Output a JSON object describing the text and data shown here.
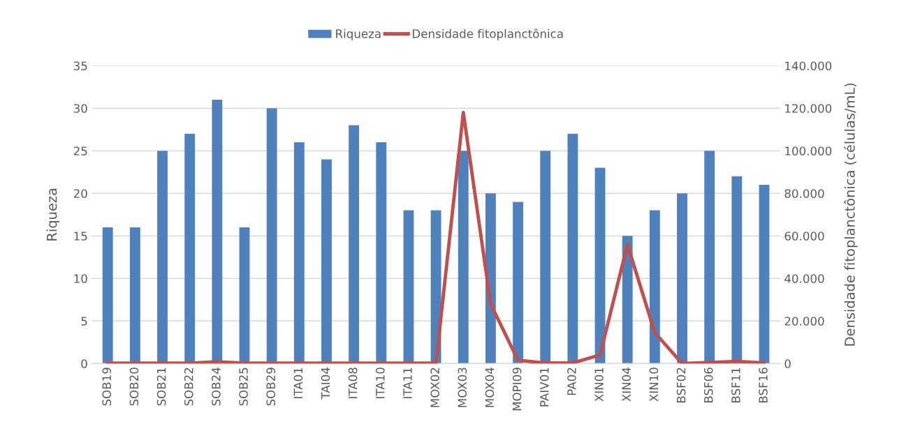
{
  "chart_data": {
    "type": "bar",
    "ylabel": "Riqueza",
    "y2label": "Densidade fitoplanctônica (células/mL)",
    "categories": [
      "SOB19",
      "SOB20",
      "SOB21",
      "SOB22",
      "SOB24",
      "SOB25",
      "SOB29",
      "ITA01",
      "TAI04",
      "ITA08",
      "ITA10",
      "ITA11",
      "MOX02",
      "MOX03",
      "MOX04",
      "MOPI09",
      "PAIV01",
      "PA02",
      "XIN01",
      "XIN04",
      "XIN10",
      "BSF02",
      "BSF06",
      "BSF11",
      "BSF16"
    ],
    "series": [
      {
        "name": "Riqueza",
        "color": "#4f81bd",
        "values": [
          16,
          16,
          25,
          27,
          31,
          16,
          30,
          26,
          24,
          28,
          26,
          18,
          18,
          25,
          20,
          19,
          25,
          27,
          23,
          15,
          18,
          20,
          25,
          22,
          21
        ]
      },
      {
        "name": "Densidade fitoplanctônica",
        "type": "line",
        "axis": "y2",
        "color": "#c0504d",
        "values": [
          200,
          200,
          200,
          200,
          800,
          200,
          200,
          200,
          200,
          200,
          200,
          200,
          300,
          118000,
          28000,
          1500,
          300,
          300,
          4000,
          56000,
          14500,
          0,
          500,
          1000,
          300
        ]
      }
    ],
    "ylim": [
      0,
      35
    ],
    "yticks": [
      0,
      5,
      10,
      15,
      20,
      25,
      30,
      35
    ],
    "y2lim": [
      0,
      140000
    ],
    "y2ticks": [
      0,
      {
        "value": 20000,
        "label": "20.000"
      },
      {
        "value": 40000,
        "label": "40.000"
      },
      {
        "value": 60000,
        "label": "60.000"
      },
      {
        "value": 80000,
        "label": "80.000"
      },
      {
        "value": 100000,
        "label": "100.000"
      },
      {
        "value": 120000,
        "label": "120.000"
      },
      {
        "value": 140000,
        "label": "140.000"
      }
    ],
    "grid": "y",
    "legend": "top",
    "marker": "none",
    "line_style": "solid"
  }
}
